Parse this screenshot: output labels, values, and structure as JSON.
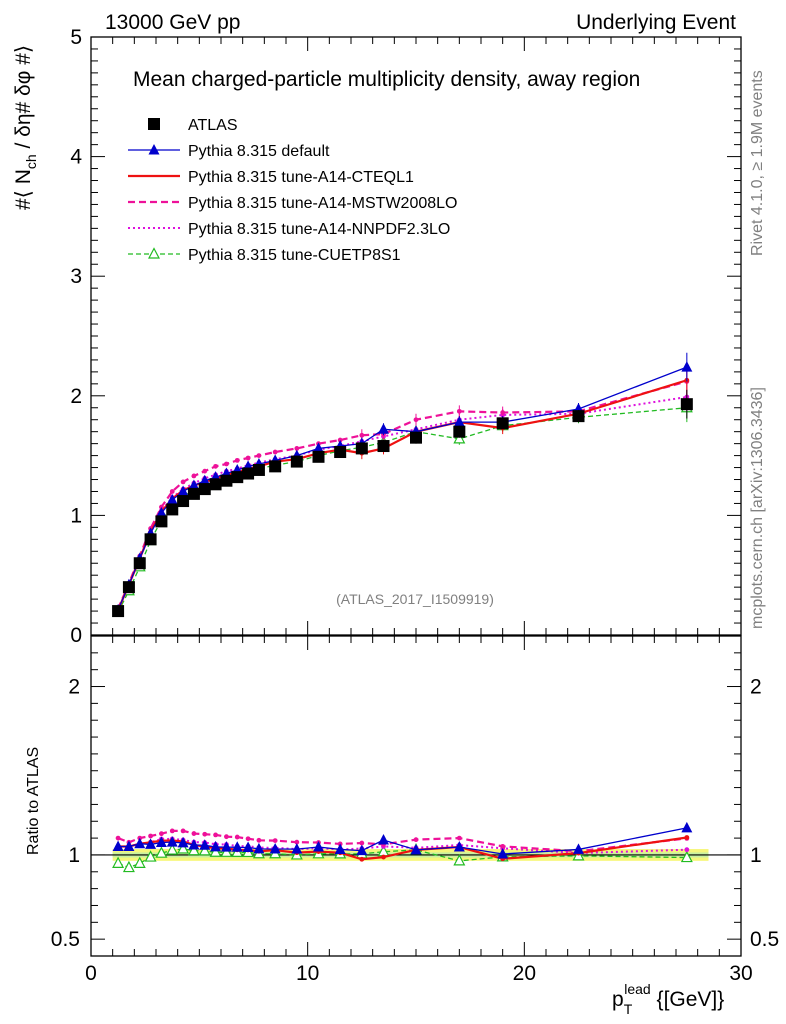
{
  "header": {
    "left": "13000 GeV pp",
    "right": "Underlying Event"
  },
  "side": {
    "rivet": "Rivet 4.1.0, ≥ 1.9M events",
    "mcplots": "mcplots.cern.ch [arXiv:1306.3436]"
  },
  "colors": {
    "atlas": "#000000",
    "default": "#0000cc",
    "cteql1": "#ee1111",
    "mstw": "#ee1199",
    "nnpdf": "#dd11dd",
    "cuetp8s1": "#22bb22",
    "band_outer": "#f6f67a",
    "band_inner": "#c8f0a0"
  },
  "chart_data": {
    "type": "line",
    "title": "Mean charged-particle multiplicity density, away region",
    "watermark": "(ATLAS_2017_I1509919)",
    "ylabel_main": "#⟨ N_ch / δη# δφ #⟩",
    "ylabel_ratio": "Ratio to ATLAS",
    "xlabel": "p_T^lead {[GeV]}",
    "xlim": [
      0,
      30
    ],
    "ylim_main": [
      0,
      5
    ],
    "ylim_ratio": [
      0.4,
      2.3
    ],
    "xticks": [
      0,
      10,
      20,
      30
    ],
    "yticks_main": [
      0,
      1,
      2,
      3,
      4,
      5
    ],
    "yticks_ratio": [
      0.5,
      1,
      2
    ],
    "legend": [
      {
        "key": "atlas",
        "label": "ATLAS"
      },
      {
        "key": "default",
        "label": "Pythia 8.315 default"
      },
      {
        "key": "cteql1",
        "label": "Pythia 8.315 tune-A14-CTEQL1"
      },
      {
        "key": "mstw",
        "label": "Pythia 8.315 tune-A14-MSTW2008LO"
      },
      {
        "key": "nnpdf",
        "label": "Pythia 8.315 tune-A14-NNPDF2.3LO"
      },
      {
        "key": "cuetp8s1",
        "label": "Pythia 8.315 tune-CUETP8S1"
      }
    ],
    "x": [
      1.25,
      1.75,
      2.25,
      2.75,
      3.25,
      3.75,
      4.25,
      4.75,
      5.25,
      5.75,
      6.25,
      6.75,
      7.25,
      7.75,
      8.5,
      9.5,
      10.5,
      11.5,
      12.5,
      13.5,
      15.0,
      17.0,
      19.0,
      22.5,
      27.5
    ],
    "series": [
      {
        "name": "ATLAS",
        "key": "atlas",
        "values": [
          0.2,
          0.4,
          0.6,
          0.8,
          0.95,
          1.05,
          1.12,
          1.18,
          1.22,
          1.26,
          1.29,
          1.32,
          1.35,
          1.38,
          1.41,
          1.45,
          1.49,
          1.53,
          1.56,
          1.58,
          1.65,
          1.7,
          1.77,
          1.83,
          1.93
        ]
      },
      {
        "name": "Pythia 8.315 default",
        "key": "default",
        "values": [
          0.21,
          0.42,
          0.64,
          0.85,
          1.02,
          1.13,
          1.2,
          1.25,
          1.29,
          1.32,
          1.35,
          1.38,
          1.41,
          1.43,
          1.46,
          1.5,
          1.56,
          1.58,
          1.6,
          1.72,
          1.7,
          1.78,
          1.78,
          1.89,
          2.24
        ]
      },
      {
        "name": "Pythia 8.315 tune-A14-CTEQL1",
        "key": "cteql1",
        "values": [
          0.21,
          0.42,
          0.64,
          0.86,
          1.03,
          1.14,
          1.21,
          1.25,
          1.28,
          1.31,
          1.34,
          1.36,
          1.39,
          1.41,
          1.45,
          1.47,
          1.52,
          1.55,
          1.52,
          1.56,
          1.7,
          1.78,
          1.73,
          1.85,
          2.13
        ]
      },
      {
        "name": "Pythia 8.315 tune-A14-MSTW2008LO",
        "key": "mstw",
        "values": [
          0.22,
          0.43,
          0.66,
          0.89,
          1.07,
          1.2,
          1.28,
          1.33,
          1.37,
          1.41,
          1.43,
          1.46,
          1.48,
          1.5,
          1.53,
          1.56,
          1.6,
          1.63,
          1.67,
          1.68,
          1.8,
          1.87,
          1.86,
          1.87,
          2.12
        ]
      },
      {
        "name": "Pythia 8.315 tune-A14-NNPDF2.3LO",
        "key": "nnpdf",
        "values": [
          0.21,
          0.42,
          0.64,
          0.86,
          1.04,
          1.15,
          1.22,
          1.27,
          1.31,
          1.34,
          1.37,
          1.39,
          1.42,
          1.44,
          1.47,
          1.5,
          1.55,
          1.58,
          1.62,
          1.66,
          1.72,
          1.8,
          1.84,
          1.85,
          1.99
        ]
      },
      {
        "name": "Pythia 8.315 tune-CUETP8S1",
        "key": "cuetp8s1",
        "values": [
          0.19,
          0.37,
          0.57,
          0.79,
          0.96,
          1.08,
          1.16,
          1.21,
          1.25,
          1.28,
          1.31,
          1.34,
          1.37,
          1.39,
          1.42,
          1.45,
          1.5,
          1.54,
          1.57,
          1.61,
          1.7,
          1.64,
          1.75,
          1.82,
          1.9
        ]
      }
    ]
  }
}
